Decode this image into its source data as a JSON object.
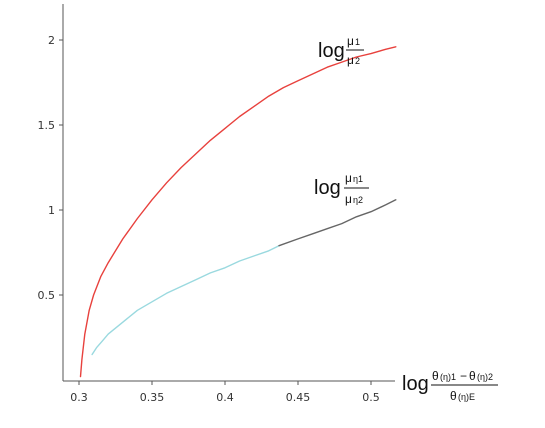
{
  "chart_data": {
    "type": "line",
    "title": "",
    "xlabel": "",
    "ylabel": "",
    "xlim": [
      0.3,
      0.52
    ],
    "ylim": [
      0,
      2.1
    ],
    "x_ticks": [
      "0.3",
      "0.35",
      "0.4",
      "0.45",
      "0.5"
    ],
    "y_ticks": [
      "0.5",
      "1",
      "1.5",
      "2"
    ],
    "grid": false,
    "colors": {
      "red": "#e8413d",
      "cyan": "#9ad9df",
      "gray": "#666666",
      "axis": "#555555"
    },
    "series": [
      {
        "id": "red",
        "x": [
          0.301,
          0.302,
          0.304,
          0.307,
          0.31,
          0.315,
          0.32,
          0.33,
          0.34,
          0.35,
          0.36,
          0.37,
          0.38,
          0.39,
          0.4,
          0.41,
          0.42,
          0.43,
          0.44,
          0.45,
          0.46,
          0.47,
          0.48,
          0.49,
          0.5,
          0.51,
          0.517
        ],
        "y": [
          0.02,
          0.12,
          0.27,
          0.41,
          0.5,
          0.61,
          0.69,
          0.83,
          0.95,
          1.06,
          1.16,
          1.25,
          1.33,
          1.41,
          1.48,
          1.55,
          1.61,
          1.67,
          1.72,
          1.76,
          1.8,
          1.84,
          1.87,
          1.9,
          1.92,
          1.945,
          1.96
        ]
      },
      {
        "id": "cyan",
        "x": [
          0.309,
          0.312,
          0.316,
          0.32,
          0.33,
          0.34,
          0.35,
          0.36,
          0.37,
          0.38,
          0.39,
          0.4,
          0.41,
          0.42,
          0.43,
          0.437
        ],
        "y": [
          0.15,
          0.19,
          0.23,
          0.27,
          0.34,
          0.41,
          0.46,
          0.51,
          0.55,
          0.59,
          0.63,
          0.66,
          0.7,
          0.73,
          0.76,
          0.79
        ]
      },
      {
        "id": "gray",
        "x": [
          0.437,
          0.45,
          0.46,
          0.47,
          0.48,
          0.49,
          0.5,
          0.51,
          0.517
        ],
        "y": [
          0.79,
          0.83,
          0.86,
          0.89,
          0.92,
          0.96,
          0.99,
          1.03,
          1.06
        ]
      }
    ],
    "annotations": {
      "red_label": {
        "log": "log",
        "num": "μ",
        "num_sub": "1",
        "den": "μ",
        "den_sub": "2"
      },
      "eta_label": {
        "log": "log",
        "num": "μ",
        "num_sub": "η1",
        "den": "μ",
        "den_sub": "η2"
      },
      "x_label": {
        "log": "log",
        "num1": "θ",
        "num1_sub": "(η)1",
        "minus": "−",
        "num2": "θ",
        "num2_sub": "(η)2",
        "den": "θ",
        "den_sub": "(η)E"
      }
    }
  }
}
